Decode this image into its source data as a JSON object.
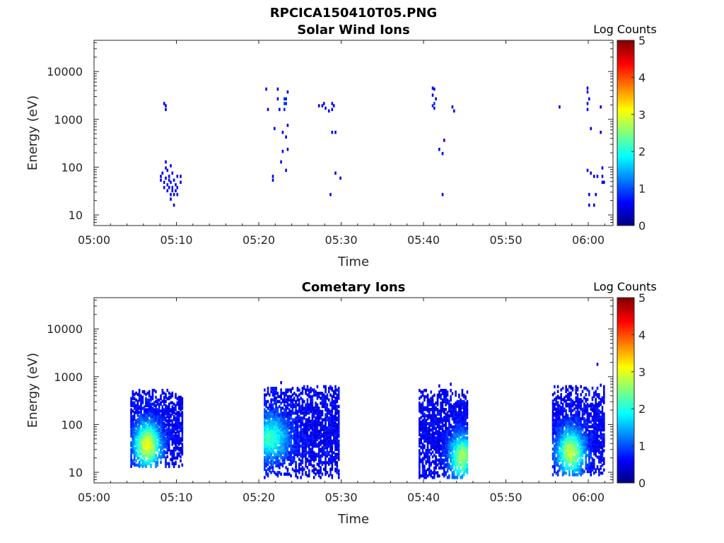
{
  "figure_title": "RPCICA150410T05.PNG",
  "chart_data": [
    {
      "type": "heatmap",
      "title": "Solar Wind Ions",
      "xlabel": "Time",
      "ylabel": "Energy (eV)",
      "x_ticks": [
        "05:00",
        "05:10",
        "05:20",
        "05:30",
        "05:40",
        "05:50",
        "06:00"
      ],
      "y_ticks": [
        "10",
        "100",
        "1000",
        "10000"
      ],
      "y_scale": "log",
      "xlim_minutes": [
        0,
        63
      ],
      "ylim": [
        6,
        45000
      ],
      "colorbar": {
        "label": "Log Counts",
        "ticks": [
          "0",
          "1",
          "2",
          "3",
          "4",
          "5"
        ],
        "range": [
          0,
          5
        ],
        "colormap": "jet"
      },
      "cells": [
        [
          8.4,
          2000,
          0.6
        ],
        [
          8.6,
          1800,
          0.6
        ],
        [
          8.6,
          1500,
          0.6
        ],
        [
          8.0,
          60,
          0.5
        ],
        [
          8.0,
          50,
          0.5
        ],
        [
          8.2,
          70,
          0.6
        ],
        [
          8.4,
          45,
          0.6
        ],
        [
          8.4,
          35,
          0.6
        ],
        [
          8.6,
          120,
          0.6
        ],
        [
          8.6,
          90,
          0.7
        ],
        [
          8.6,
          55,
          0.6
        ],
        [
          8.8,
          80,
          0.6
        ],
        [
          8.8,
          40,
          0.7
        ],
        [
          8.8,
          30,
          0.5
        ],
        [
          9.0,
          60,
          0.6
        ],
        [
          9.0,
          50,
          0.7
        ],
        [
          9.0,
          35,
          0.6
        ],
        [
          9.2,
          100,
          0.6
        ],
        [
          9.2,
          45,
          0.7
        ],
        [
          9.2,
          25,
          0.6
        ],
        [
          9.2,
          20,
          0.5
        ],
        [
          9.4,
          70,
          0.6
        ],
        [
          9.4,
          35,
          0.7
        ],
        [
          9.4,
          30,
          0.6
        ],
        [
          9.6,
          50,
          0.6
        ],
        [
          9.6,
          25,
          0.6
        ],
        [
          9.6,
          15,
          0.5
        ],
        [
          9.8,
          40,
          0.6
        ],
        [
          9.8,
          30,
          0.6
        ],
        [
          10.0,
          60,
          0.5
        ],
        [
          10.0,
          35,
          0.6
        ],
        [
          10.0,
          25,
          0.6
        ],
        [
          10.4,
          60,
          0.5
        ],
        [
          10.4,
          45,
          0.5
        ],
        [
          20.8,
          4000,
          0.6
        ],
        [
          21.0,
          1500,
          0.5
        ],
        [
          21.6,
          60,
          0.5
        ],
        [
          21.6,
          50,
          0.5
        ],
        [
          21.8,
          600,
          0.5
        ],
        [
          22.2,
          4000,
          0.5
        ],
        [
          22.2,
          2500,
          0.6
        ],
        [
          22.4,
          1500,
          0.6
        ],
        [
          22.6,
          120,
          0.5
        ],
        [
          22.8,
          500,
          0.5
        ],
        [
          22.8,
          200,
          0.6
        ],
        [
          23.0,
          2500,
          0.9
        ],
        [
          23.0,
          2000,
          1.0
        ],
        [
          23.0,
          1500,
          0.8
        ],
        [
          23.2,
          2500,
          0.7
        ],
        [
          23.2,
          2000,
          0.8
        ],
        [
          23.2,
          400,
          0.5
        ],
        [
          23.4,
          3500,
          0.5
        ],
        [
          23.4,
          700,
          0.5
        ],
        [
          23.4,
          220,
          0.6
        ],
        [
          23.2,
          80,
          0.5
        ],
        [
          27.2,
          1800,
          0.5
        ],
        [
          27.6,
          1800,
          0.5
        ],
        [
          27.8,
          2000,
          0.6
        ],
        [
          28.0,
          1600,
          0.6
        ],
        [
          28.4,
          1400,
          0.5
        ],
        [
          28.6,
          25,
          0.6
        ],
        [
          28.8,
          2000,
          0.6
        ],
        [
          28.8,
          1500,
          0.6
        ],
        [
          28.8,
          500,
          0.6
        ],
        [
          29.0,
          1800,
          0.5
        ],
        [
          29.2,
          500,
          0.5
        ],
        [
          29.2,
          70,
          0.5
        ],
        [
          29.8,
          55,
          0.5
        ],
        [
          41.0,
          4200,
          0.7
        ],
        [
          41.0,
          3000,
          0.6
        ],
        [
          41.0,
          1800,
          0.8
        ],
        [
          41.2,
          2000,
          0.9
        ],
        [
          41.2,
          1600,
          0.7
        ],
        [
          41.2,
          4000,
          0.6
        ],
        [
          41.4,
          2500,
          0.6
        ],
        [
          41.8,
          220,
          0.5
        ],
        [
          42.2,
          180,
          0.5
        ],
        [
          42.2,
          25,
          0.6
        ],
        [
          42.4,
          340,
          0.5
        ],
        [
          43.4,
          1700,
          0.5
        ],
        [
          43.6,
          1400,
          0.6
        ],
        [
          56.4,
          1700,
          0.5
        ],
        [
          59.8,
          4200,
          0.6
        ],
        [
          59.8,
          3500,
          0.6
        ],
        [
          59.8,
          2000,
          0.7
        ],
        [
          59.8,
          1500,
          0.6
        ],
        [
          59.8,
          80,
          0.5
        ],
        [
          60.0,
          2500,
          0.6
        ],
        [
          60.0,
          25,
          0.5
        ],
        [
          60.0,
          15,
          0.6
        ],
        [
          60.2,
          600,
          0.5
        ],
        [
          60.2,
          70,
          0.5
        ],
        [
          60.6,
          60,
          0.6
        ],
        [
          60.6,
          15,
          0.6
        ],
        [
          60.8,
          25,
          0.5
        ],
        [
          61.0,
          60,
          0.5
        ],
        [
          61.4,
          500,
          0.5
        ],
        [
          61.4,
          1700,
          0.5
        ],
        [
          61.6,
          90,
          0.5
        ],
        [
          61.6,
          60,
          0.5
        ],
        [
          61.6,
          45,
          0.6
        ],
        [
          61.8,
          45,
          0.5
        ]
      ]
    },
    {
      "type": "heatmap",
      "title": "Cometary Ions",
      "xlabel": "Time",
      "ylabel": "Energy (eV)",
      "x_ticks": [
        "05:00",
        "05:10",
        "05:20",
        "05:30",
        "05:40",
        "05:50",
        "06:00"
      ],
      "y_ticks": [
        "10",
        "100",
        "1000",
        "10000"
      ],
      "y_scale": "log",
      "xlim_minutes": [
        0,
        63
      ],
      "ylim": [
        6,
        45000
      ],
      "colorbar": {
        "label": "Log Counts",
        "ticks": [
          "0",
          "1",
          "2",
          "3",
          "4",
          "5"
        ],
        "range": [
          0,
          5
        ],
        "colormap": "jet"
      },
      "clusters": [
        {
          "t": [
            4.4,
            10.6
          ],
          "e": [
            12,
            500
          ],
          "peak_t": 6.4,
          "peak_e": 35,
          "peak": 2.5,
          "seed": 11
        },
        {
          "t": [
            20.6,
            29.6
          ],
          "e": [
            7,
            600
          ],
          "peak_t": 21.2,
          "peak_e": 50,
          "peak": 1.6,
          "seed": 23
        },
        {
          "t": [
            39.4,
            45.4
          ],
          "e": [
            7,
            500
          ],
          "peak_t": 44.6,
          "peak_e": 20,
          "peak": 2.1,
          "seed": 37
        },
        {
          "t": [
            55.6,
            62.0
          ],
          "e": [
            8,
            600
          ],
          "peak_t": 57.8,
          "peak_e": 25,
          "peak": 2.3,
          "seed": 51
        }
      ],
      "cells": [
        [
          61.0,
          1700,
          0.6
        ],
        [
          61.4,
          620,
          0.5
        ],
        [
          41.8,
          600,
          0.5
        ],
        [
          43.2,
          650,
          0.6
        ],
        [
          22.6,
          700,
          0.5
        ]
      ]
    }
  ]
}
